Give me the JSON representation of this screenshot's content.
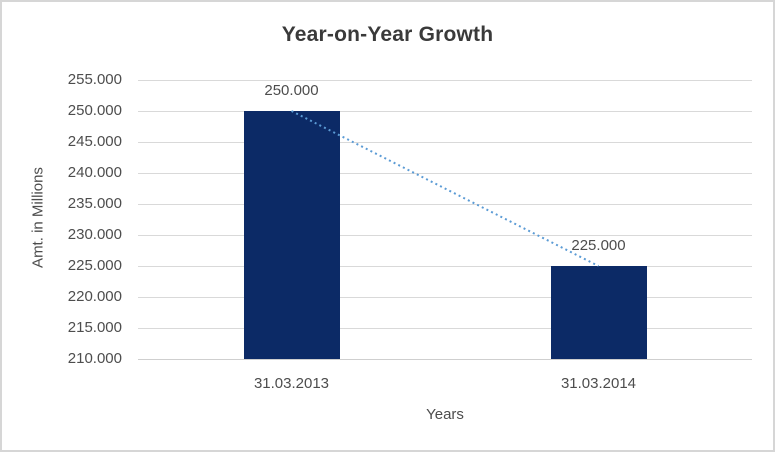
{
  "window": {
    "background": "#ffffff",
    "border_color": "#d6d6d6"
  },
  "chart_data": {
    "type": "bar",
    "title": "Year-on-Year Growth",
    "xlabel": "Years",
    "ylabel": "Amt. in Millions",
    "categories": [
      "31.03.2013",
      "31.03.2014"
    ],
    "values": [
      250000,
      225000
    ],
    "value_labels": [
      "250.000",
      "225.000"
    ],
    "ylim": [
      210000,
      255000
    ],
    "y_ticks": [
      {
        "value": 210000,
        "label": "210.000"
      },
      {
        "value": 215000,
        "label": "215.000"
      },
      {
        "value": 220000,
        "label": "220.000"
      },
      {
        "value": 225000,
        "label": "225.000"
      },
      {
        "value": 230000,
        "label": "230.000"
      },
      {
        "value": 235000,
        "label": "235.000"
      },
      {
        "value": 240000,
        "label": "240.000"
      },
      {
        "value": 245000,
        "label": "245.000"
      },
      {
        "value": 250000,
        "label": "250.000"
      },
      {
        "value": 255000,
        "label": "255.000"
      }
    ],
    "grid": true,
    "legend": "none",
    "trendline": {
      "style": "dotted",
      "color": "#5b9bd5",
      "from": {
        "category_index": 0,
        "value": 250000
      },
      "to": {
        "category_index": 1,
        "value": 225000
      }
    },
    "colors": {
      "bar": "#0c2a66",
      "gridline": "#d9d9d9",
      "axis_line": "#cfcfcf",
      "label_text": "#4d4d4d",
      "title_text": "#3a3a3a"
    }
  }
}
